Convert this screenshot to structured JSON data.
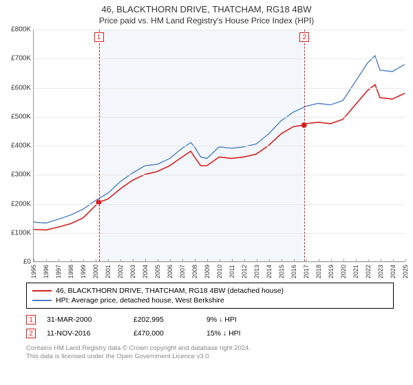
{
  "title": "46, BLACKTHORN DRIVE, THATCHAM, RG18 4BW",
  "subtitle": "Price paid vs. HM Land Registry's House Price Index (HPI)",
  "chart": {
    "type": "line",
    "background_color": "#ffffff",
    "grid_color": "#e8e8e8",
    "axis_color": "#999999",
    "plot_band": {
      "from_year": 2000.25,
      "to_year": 2016.86,
      "fill": "#f3f6fa"
    },
    "ylim": [
      0,
      800000
    ],
    "ytick_step": 100000,
    "yticks": [
      "£0",
      "£100K",
      "£200K",
      "£300K",
      "£400K",
      "£500K",
      "£600K",
      "£700K",
      "£800K"
    ],
    "xlim": [
      1995,
      2025
    ],
    "xticks": [
      1995,
      1996,
      1997,
      1998,
      1999,
      2000,
      2001,
      2002,
      2003,
      2004,
      2005,
      2006,
      2007,
      2008,
      2009,
      2010,
      2011,
      2012,
      2013,
      2014,
      2015,
      2016,
      2017,
      2018,
      2019,
      2020,
      2021,
      2022,
      2023,
      2024,
      2025
    ],
    "series": [
      {
        "name": "46, BLACKTHORN DRIVE, THATCHAM, RG18 4BW (detached house)",
        "color": "#d61e1e",
        "width": 1.6,
        "data": [
          [
            1995,
            110000
          ],
          [
            1996,
            108000
          ],
          [
            1997,
            118000
          ],
          [
            1998,
            130000
          ],
          [
            1999,
            150000
          ],
          [
            2000.25,
            202995
          ],
          [
            2001,
            215000
          ],
          [
            2002,
            250000
          ],
          [
            2003,
            280000
          ],
          [
            2004,
            300000
          ],
          [
            2005,
            310000
          ],
          [
            2006,
            330000
          ],
          [
            2007,
            360000
          ],
          [
            2007.7,
            380000
          ],
          [
            2008,
            360000
          ],
          [
            2008.5,
            330000
          ],
          [
            2009,
            330000
          ],
          [
            2010,
            360000
          ],
          [
            2011,
            355000
          ],
          [
            2012,
            360000
          ],
          [
            2013,
            370000
          ],
          [
            2014,
            400000
          ],
          [
            2015,
            440000
          ],
          [
            2016,
            465000
          ],
          [
            2016.86,
            470000
          ],
          [
            2017,
            475000
          ],
          [
            2018,
            480000
          ],
          [
            2019,
            475000
          ],
          [
            2020,
            490000
          ],
          [
            2021,
            540000
          ],
          [
            2022,
            590000
          ],
          [
            2022.6,
            610000
          ],
          [
            2023,
            565000
          ],
          [
            2024,
            560000
          ],
          [
            2025,
            580000
          ]
        ],
        "sale_points": [
          {
            "x": 2000.25,
            "y": 202995
          },
          {
            "x": 2016.86,
            "y": 470000
          }
        ]
      },
      {
        "name": "HPI: Average price, detached house, West Berkshire",
        "color": "#4b7fc4",
        "width": 1.4,
        "data": [
          [
            1995,
            135000
          ],
          [
            1996,
            132000
          ],
          [
            1997,
            145000
          ],
          [
            1998,
            160000
          ],
          [
            1999,
            180000
          ],
          [
            2000,
            210000
          ],
          [
            2001,
            235000
          ],
          [
            2002,
            275000
          ],
          [
            2003,
            305000
          ],
          [
            2004,
            330000
          ],
          [
            2005,
            335000
          ],
          [
            2006,
            355000
          ],
          [
            2007,
            390000
          ],
          [
            2007.7,
            410000
          ],
          [
            2008,
            395000
          ],
          [
            2008.5,
            360000
          ],
          [
            2009,
            355000
          ],
          [
            2010,
            395000
          ],
          [
            2011,
            390000
          ],
          [
            2012,
            395000
          ],
          [
            2013,
            405000
          ],
          [
            2014,
            440000
          ],
          [
            2015,
            485000
          ],
          [
            2016,
            515000
          ],
          [
            2017,
            535000
          ],
          [
            2018,
            545000
          ],
          [
            2019,
            540000
          ],
          [
            2020,
            555000
          ],
          [
            2021,
            620000
          ],
          [
            2022,
            685000
          ],
          [
            2022.6,
            710000
          ],
          [
            2023,
            660000
          ],
          [
            2024,
            655000
          ],
          [
            2025,
            680000
          ]
        ]
      }
    ],
    "markers": [
      {
        "n": "1",
        "year": 2000.25,
        "color": "#d61e1e"
      },
      {
        "n": "2",
        "year": 2016.86,
        "color": "#d61e1e"
      }
    ]
  },
  "legend": {
    "items": [
      {
        "color": "#d61e1e",
        "label": "46, BLACKTHORN DRIVE, THATCHAM, RG18 4BW (detached house)"
      },
      {
        "color": "#4b7fc4",
        "label": "HPI: Average price, detached house, West Berkshire"
      }
    ]
  },
  "sales": [
    {
      "n": "1",
      "color": "#d61e1e",
      "date": "31-MAR-2000",
      "price": "£202,995",
      "pct": "9% ↓ HPI"
    },
    {
      "n": "2",
      "color": "#d61e1e",
      "date": "11-NOV-2016",
      "price": "£470,000",
      "pct": "15% ↓ HPI"
    }
  ],
  "footer": {
    "line1": "Contains HM Land Registry data © Crown copyright and database right 2024.",
    "line2": "This data is licensed under the Open Government Licence v3.0."
  },
  "fonts": {
    "title_size": 13,
    "subtitle_size": 12,
    "tick_size": 10,
    "legend_size": 10.5
  }
}
